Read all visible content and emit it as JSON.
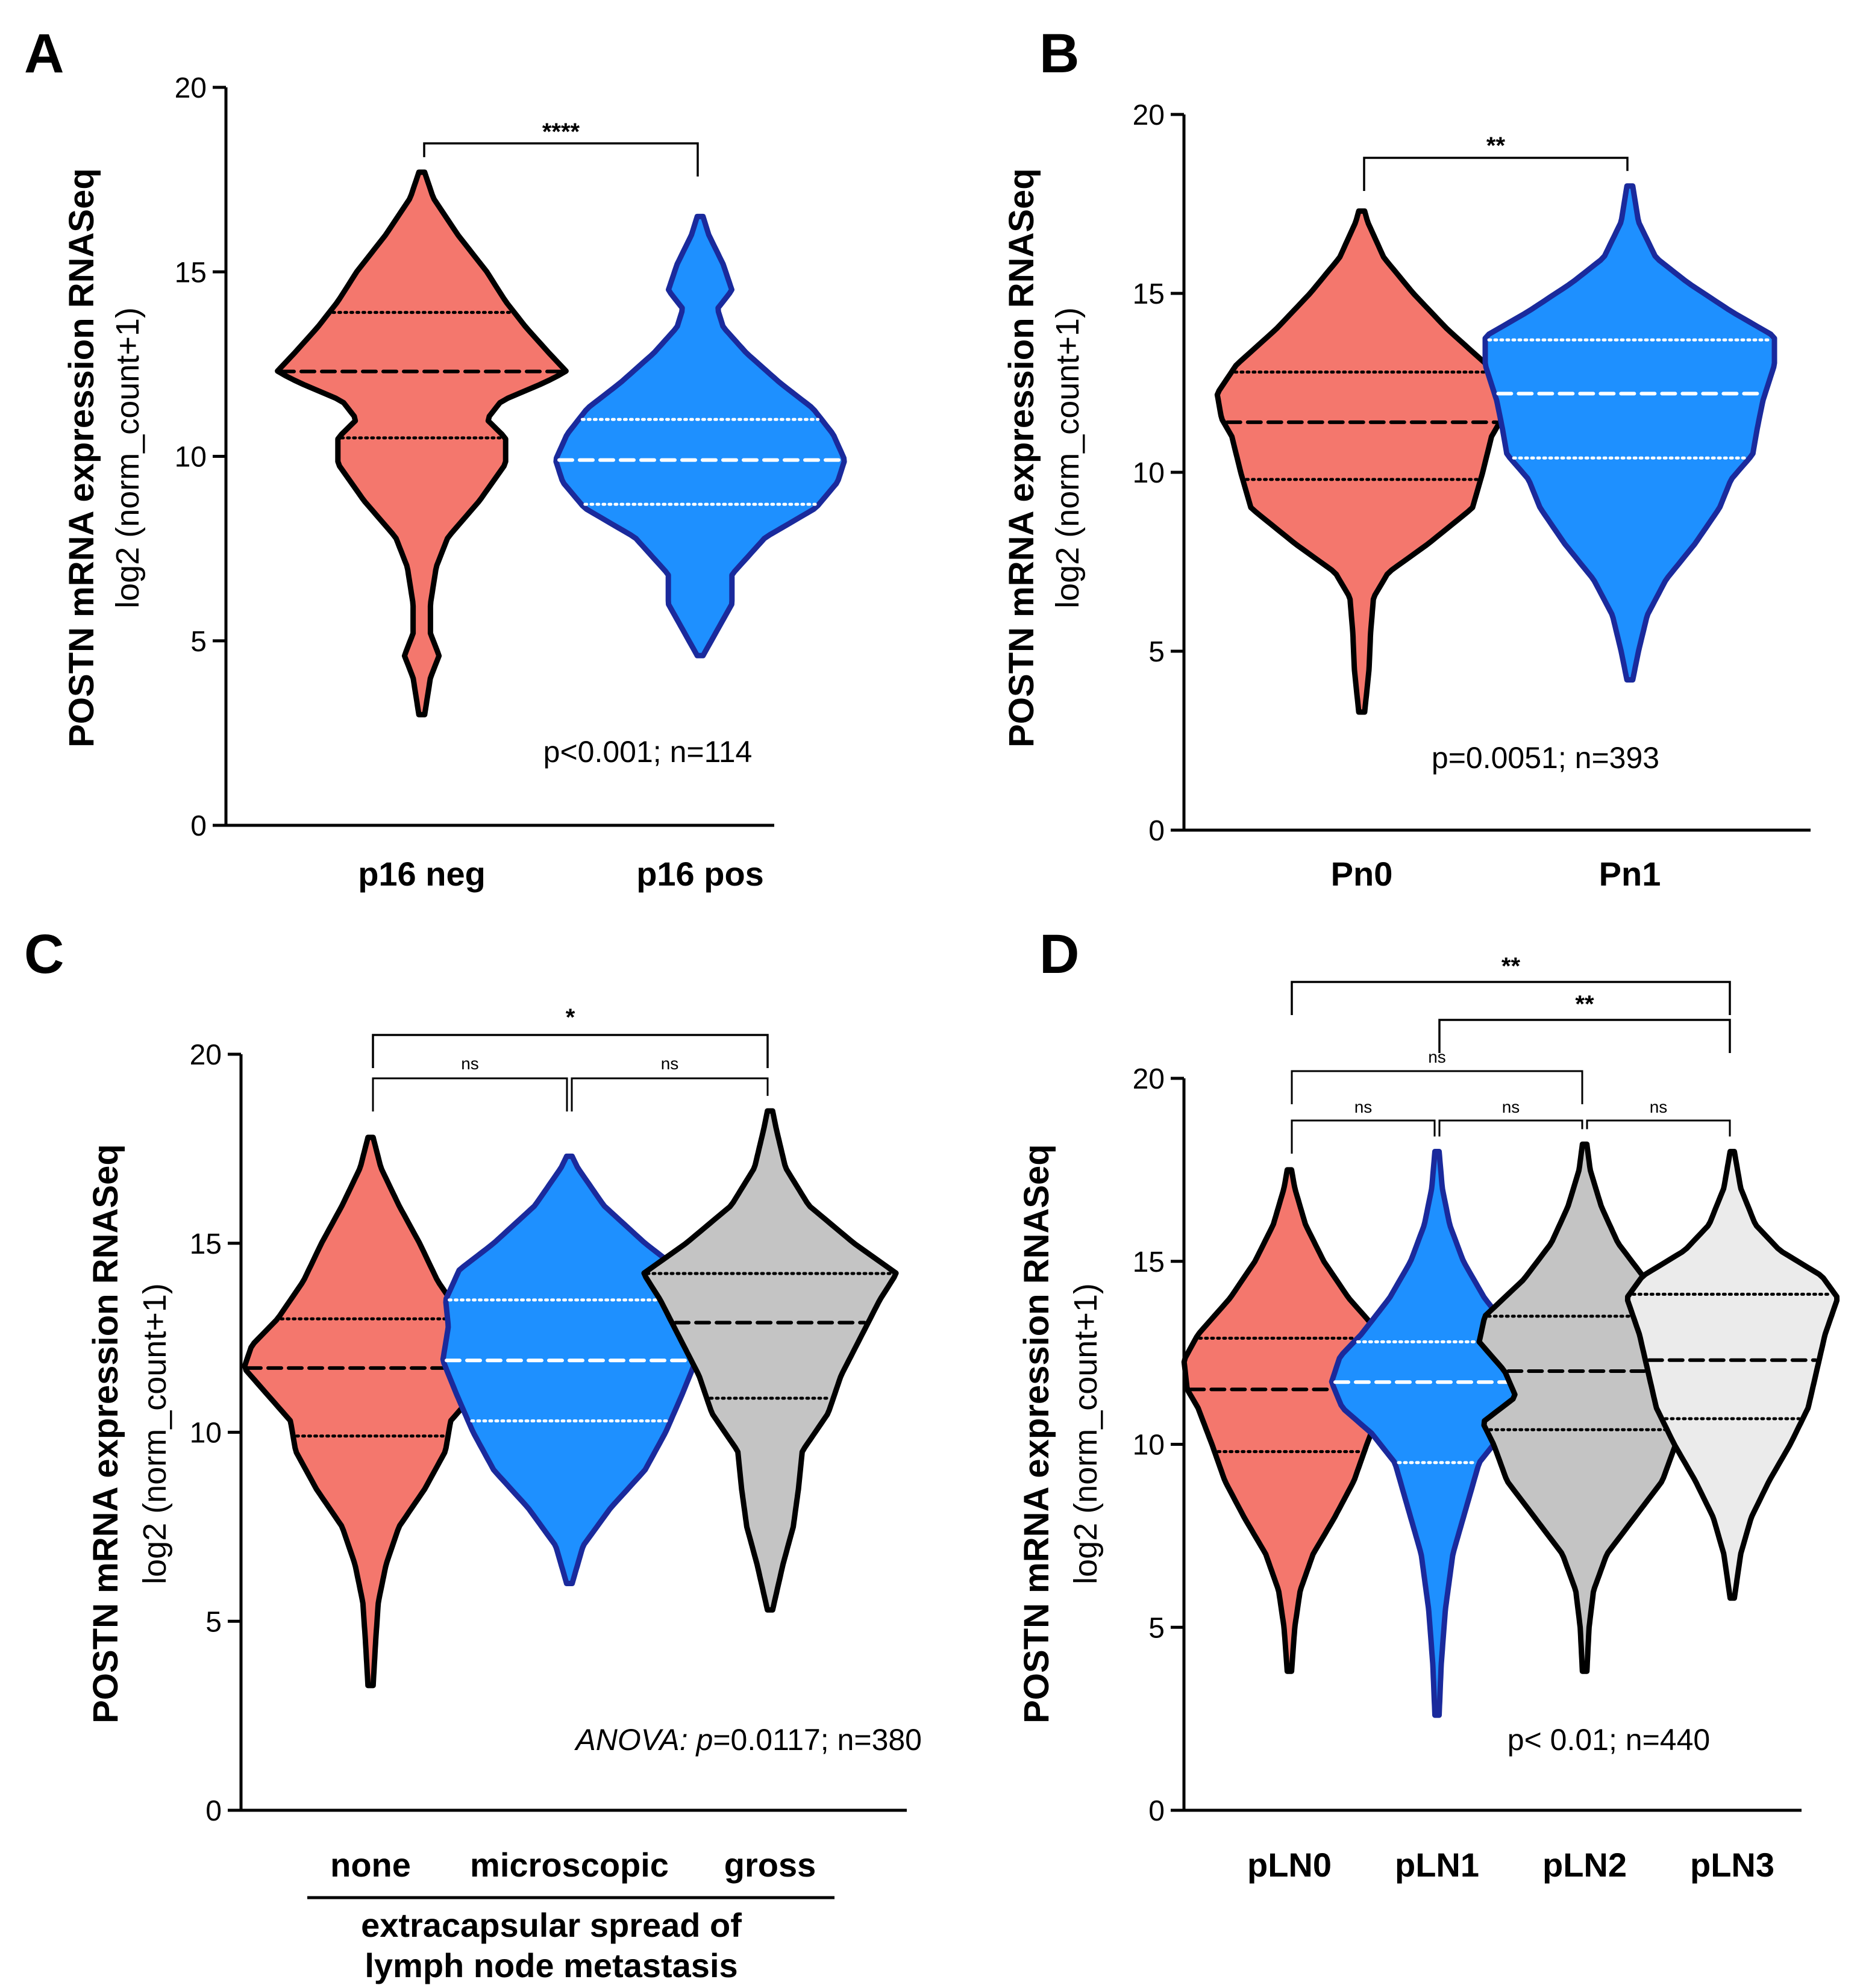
{
  "chart_data": [
    {
      "panel": "A",
      "type": "violin",
      "ylabel": "POSTN mRNA expression RNASeq",
      "ylabel2": "log2 (norm_count+1)",
      "ylim": [
        0,
        20
      ],
      "yticks": [
        0,
        5,
        10,
        15,
        20
      ],
      "categories": [
        "p16 neg",
        "p16 pos"
      ],
      "colors": [
        "#f4776d",
        "#1e90ff"
      ],
      "outline_colors": [
        "#000000",
        "#1a2a9c"
      ],
      "median_line_colors": [
        "#000000",
        "#ffffff"
      ],
      "series": [
        {
          "name": "p16 neg",
          "min": 3.0,
          "max": 17.7,
          "q1": 10.5,
          "median": 12.3,
          "q3": 13.9,
          "profile": [
            [
              3.0,
              0.02
            ],
            [
              4.0,
              0.06
            ],
            [
              4.6,
              0.12
            ],
            [
              5.2,
              0.06
            ],
            [
              6.0,
              0.06
            ],
            [
              7.0,
              0.1
            ],
            [
              7.8,
              0.18
            ],
            [
              8.8,
              0.4
            ],
            [
              9.8,
              0.58
            ],
            [
              10.5,
              0.58
            ],
            [
              11.0,
              0.45
            ],
            [
              11.5,
              0.55
            ],
            [
              12.0,
              0.85
            ],
            [
              12.3,
              1.0
            ],
            [
              12.8,
              0.88
            ],
            [
              13.5,
              0.72
            ],
            [
              14.2,
              0.58
            ],
            [
              15.0,
              0.45
            ],
            [
              16.0,
              0.25
            ],
            [
              17.0,
              0.08
            ],
            [
              17.7,
              0.02
            ]
          ]
        },
        {
          "name": "p16 pos",
          "min": 4.6,
          "max": 16.5,
          "q1": 8.7,
          "median": 9.9,
          "q3": 11.0,
          "profile": [
            [
              4.6,
              0.02
            ],
            [
              5.3,
              0.12
            ],
            [
              6.0,
              0.22
            ],
            [
              6.8,
              0.22
            ],
            [
              7.8,
              0.45
            ],
            [
              8.6,
              0.8
            ],
            [
              9.3,
              0.95
            ],
            [
              9.9,
              1.0
            ],
            [
              10.6,
              0.92
            ],
            [
              11.3,
              0.78
            ],
            [
              12.0,
              0.55
            ],
            [
              12.8,
              0.32
            ],
            [
              13.5,
              0.16
            ],
            [
              14.0,
              0.12
            ],
            [
              14.5,
              0.22
            ],
            [
              15.2,
              0.16
            ],
            [
              16.0,
              0.06
            ],
            [
              16.5,
              0.02
            ]
          ]
        }
      ],
      "comparisons": [
        {
          "from": "p16 neg",
          "to": "p16 pos",
          "label": "****"
        }
      ],
      "annotation": "p<0.001; n=114"
    },
    {
      "panel": "B",
      "type": "violin",
      "ylabel": "POSTN mRNA expression RNASeq",
      "ylabel2": "log2 (norm_count+1)",
      "ylim": [
        0,
        20
      ],
      "yticks": [
        0,
        5,
        10,
        15,
        20
      ],
      "categories": [
        "Pn0",
        "Pn1"
      ],
      "colors": [
        "#f4776d",
        "#1e90ff"
      ],
      "outline_colors": [
        "#000000",
        "#1a2a9c"
      ],
      "median_line_colors": [
        "#000000",
        "#ffffff"
      ],
      "series": [
        {
          "name": "Pn0",
          "min": 3.3,
          "max": 17.3,
          "q1": 9.8,
          "median": 11.4,
          "q3": 12.8,
          "profile": [
            [
              3.3,
              0.02
            ],
            [
              4.5,
              0.05
            ],
            [
              5.5,
              0.06
            ],
            [
              6.5,
              0.08
            ],
            [
              7.2,
              0.18
            ],
            [
              8.0,
              0.45
            ],
            [
              9.0,
              0.75
            ],
            [
              10.0,
              0.82
            ],
            [
              11.0,
              0.88
            ],
            [
              11.5,
              0.95
            ],
            [
              12.2,
              0.98
            ],
            [
              13.0,
              0.85
            ],
            [
              14.0,
              0.58
            ],
            [
              15.0,
              0.35
            ],
            [
              16.0,
              0.15
            ],
            [
              17.0,
              0.04
            ],
            [
              17.3,
              0.02
            ]
          ]
        },
        {
          "name": "Pn1",
          "min": 4.2,
          "max": 18.0,
          "q1": 10.4,
          "median": 12.2,
          "q3": 13.7,
          "profile": [
            [
              4.2,
              0.02
            ],
            [
              5.0,
              0.06
            ],
            [
              6.0,
              0.12
            ],
            [
              7.0,
              0.25
            ],
            [
              8.0,
              0.45
            ],
            [
              9.0,
              0.62
            ],
            [
              9.8,
              0.7
            ],
            [
              10.5,
              0.85
            ],
            [
              11.2,
              0.88
            ],
            [
              12.0,
              0.92
            ],
            [
              13.0,
              1.0
            ],
            [
              13.8,
              1.0
            ],
            [
              14.5,
              0.7
            ],
            [
              15.3,
              0.4
            ],
            [
              16.0,
              0.18
            ],
            [
              17.0,
              0.06
            ],
            [
              18.0,
              0.02
            ]
          ]
        }
      ],
      "comparisons": [
        {
          "from": "Pn0",
          "to": "Pn1",
          "label": "**"
        }
      ],
      "annotation": "p=0.0051; n=393"
    },
    {
      "panel": "C",
      "type": "violin",
      "ylabel": "POSTN mRNA expression RNASeq",
      "ylabel2": "log2 (norm_count+1)",
      "xlabel_line1": "extracapsular spread of",
      "xlabel_line2": "lymph node metastasis",
      "ylim": [
        0,
        20
      ],
      "yticks": [
        0,
        5,
        10,
        15,
        20
      ],
      "categories": [
        "none",
        "microscopic",
        "gross"
      ],
      "colors": [
        "#f4776d",
        "#1e90ff",
        "#c4c4c4"
      ],
      "outline_colors": [
        "#000000",
        "#1a2a9c",
        "#000000"
      ],
      "median_line_colors": [
        "#000000",
        "#ffffff",
        "#000000"
      ],
      "series": [
        {
          "name": "none",
          "min": 3.3,
          "max": 17.8,
          "q1": 9.9,
          "median": 11.7,
          "q3": 13.0,
          "profile": [
            [
              3.3,
              0.02
            ],
            [
              4.5,
              0.04
            ],
            [
              5.5,
              0.06
            ],
            [
              6.5,
              0.12
            ],
            [
              7.5,
              0.22
            ],
            [
              8.5,
              0.42
            ],
            [
              9.5,
              0.58
            ],
            [
              10.3,
              0.62
            ],
            [
              11.0,
              0.8
            ],
            [
              11.7,
              0.98
            ],
            [
              12.3,
              0.92
            ],
            [
              13.0,
              0.72
            ],
            [
              14.0,
              0.52
            ],
            [
              15.0,
              0.38
            ],
            [
              16.0,
              0.22
            ],
            [
              17.0,
              0.08
            ],
            [
              17.8,
              0.02
            ]
          ]
        },
        {
          "name": "microscopic",
          "min": 6.0,
          "max": 17.3,
          "q1": 10.3,
          "median": 11.9,
          "q3": 13.5,
          "profile": [
            [
              6.0,
              0.02
            ],
            [
              7.0,
              0.1
            ],
            [
              8.0,
              0.3
            ],
            [
              9.0,
              0.55
            ],
            [
              10.0,
              0.7
            ],
            [
              11.0,
              0.82
            ],
            [
              11.9,
              0.92
            ],
            [
              12.8,
              0.88
            ],
            [
              13.5,
              0.9
            ],
            [
              14.3,
              0.8
            ],
            [
              15.0,
              0.55
            ],
            [
              16.0,
              0.25
            ],
            [
              17.0,
              0.06
            ],
            [
              17.3,
              0.02
            ]
          ]
        },
        {
          "name": "gross",
          "min": 5.3,
          "max": 18.5,
          "q1": 10.9,
          "median": 12.9,
          "q3": 14.2,
          "profile": [
            [
              5.3,
              0.02
            ],
            [
              6.5,
              0.1
            ],
            [
              7.5,
              0.18
            ],
            [
              8.5,
              0.22
            ],
            [
              9.5,
              0.25
            ],
            [
              10.5,
              0.45
            ],
            [
              11.5,
              0.55
            ],
            [
              12.5,
              0.7
            ],
            [
              13.5,
              0.85
            ],
            [
              14.2,
              0.98
            ],
            [
              15.0,
              0.65
            ],
            [
              16.0,
              0.3
            ],
            [
              17.0,
              0.12
            ],
            [
              18.0,
              0.05
            ],
            [
              18.5,
              0.02
            ]
          ]
        }
      ],
      "comparisons": [
        {
          "from": "none",
          "to": "gross",
          "label": "*"
        },
        {
          "from": "none",
          "to": "microscopic",
          "label": "ns"
        },
        {
          "from": "microscopic",
          "to": "gross",
          "label": "ns"
        }
      ],
      "annotation_italic": "ANOVA:",
      "annotation_p": "p",
      "annotation_rest": "=0.0117; n=380"
    },
    {
      "panel": "D",
      "type": "violin",
      "ylabel": "POSTN mRNA expression RNASeq",
      "ylabel2": "log2 (norm_count+1)",
      "ylim": [
        0,
        20
      ],
      "yticks": [
        0,
        5,
        10,
        15,
        20
      ],
      "categories": [
        "pLN0",
        "pLN1",
        "pLN2",
        "pLN3"
      ],
      "colors": [
        "#f4776d",
        "#1e90ff",
        "#c4c4c4",
        "#ebebeb"
      ],
      "outline_colors": [
        "#000000",
        "#1a2a9c",
        "#000000",
        "#000000"
      ],
      "median_line_colors": [
        "#000000",
        "#ffffff",
        "#000000",
        "#000000"
      ],
      "series": [
        {
          "name": "pLN0",
          "min": 3.8,
          "max": 17.5,
          "q1": 9.8,
          "median": 11.5,
          "q3": 12.9,
          "profile": [
            [
              3.8,
              0.02
            ],
            [
              5.0,
              0.05
            ],
            [
              6.0,
              0.1
            ],
            [
              7.0,
              0.22
            ],
            [
              8.0,
              0.42
            ],
            [
              9.0,
              0.6
            ],
            [
              10.0,
              0.72
            ],
            [
              11.0,
              0.85
            ],
            [
              11.5,
              0.95
            ],
            [
              12.3,
              0.98
            ],
            [
              13.0,
              0.85
            ],
            [
              14.0,
              0.55
            ],
            [
              15.0,
              0.32
            ],
            [
              16.0,
              0.15
            ],
            [
              17.0,
              0.05
            ],
            [
              17.5,
              0.02
            ]
          ]
        },
        {
          "name": "pLN1",
          "min": 2.6,
          "max": 18.0,
          "q1": 9.5,
          "median": 11.7,
          "q3": 12.8,
          "profile": [
            [
              2.6,
              0.02
            ],
            [
              4.0,
              0.04
            ],
            [
              5.5,
              0.08
            ],
            [
              7.0,
              0.15
            ],
            [
              8.5,
              0.3
            ],
            [
              9.5,
              0.4
            ],
            [
              10.3,
              0.62
            ],
            [
              11.0,
              0.9
            ],
            [
              11.7,
              1.0
            ],
            [
              12.4,
              0.92
            ],
            [
              13.0,
              0.72
            ],
            [
              14.0,
              0.45
            ],
            [
              15.0,
              0.25
            ],
            [
              16.0,
              0.12
            ],
            [
              17.0,
              0.05
            ],
            [
              18.0,
              0.02
            ]
          ]
        },
        {
          "name": "pLN2",
          "min": 3.8,
          "max": 18.2,
          "q1": 10.4,
          "median": 12.0,
          "q3": 13.5,
          "profile": [
            [
              3.8,
              0.02
            ],
            [
              5.0,
              0.04
            ],
            [
              6.0,
              0.08
            ],
            [
              7.0,
              0.2
            ],
            [
              8.0,
              0.45
            ],
            [
              9.0,
              0.7
            ],
            [
              10.0,
              0.82
            ],
            [
              10.6,
              0.92
            ],
            [
              11.3,
              0.62
            ],
            [
              12.0,
              0.72
            ],
            [
              12.8,
              0.95
            ],
            [
              13.5,
              0.9
            ],
            [
              14.5,
              0.55
            ],
            [
              15.5,
              0.3
            ],
            [
              16.5,
              0.15
            ],
            [
              17.5,
              0.05
            ],
            [
              18.2,
              0.02
            ]
          ]
        },
        {
          "name": "pLN3",
          "min": 5.8,
          "max": 18.0,
          "q1": 10.7,
          "median": 12.3,
          "q3": 14.1,
          "profile": [
            [
              5.8,
              0.02
            ],
            [
              7.0,
              0.08
            ],
            [
              8.0,
              0.18
            ],
            [
              9.0,
              0.35
            ],
            [
              10.0,
              0.55
            ],
            [
              11.0,
              0.72
            ],
            [
              12.0,
              0.8
            ],
            [
              13.0,
              0.88
            ],
            [
              14.0,
              1.0
            ],
            [
              14.6,
              0.85
            ],
            [
              15.3,
              0.45
            ],
            [
              16.0,
              0.22
            ],
            [
              17.0,
              0.08
            ],
            [
              18.0,
              0.02
            ]
          ]
        }
      ],
      "comparisons": [
        {
          "from": "pLN0",
          "to": "pLN3",
          "label": "**"
        },
        {
          "from": "pLN1",
          "to": "pLN3",
          "label": "**"
        },
        {
          "from": "pLN0",
          "to": "pLN2",
          "label": "ns"
        },
        {
          "from": "pLN0",
          "to": "pLN1",
          "label": "ns"
        },
        {
          "from": "pLN1",
          "to": "pLN2",
          "label": "ns"
        },
        {
          "from": "pLN2",
          "to": "pLN3",
          "label": "ns"
        }
      ],
      "annotation": "p< 0.01; n=440"
    }
  ]
}
